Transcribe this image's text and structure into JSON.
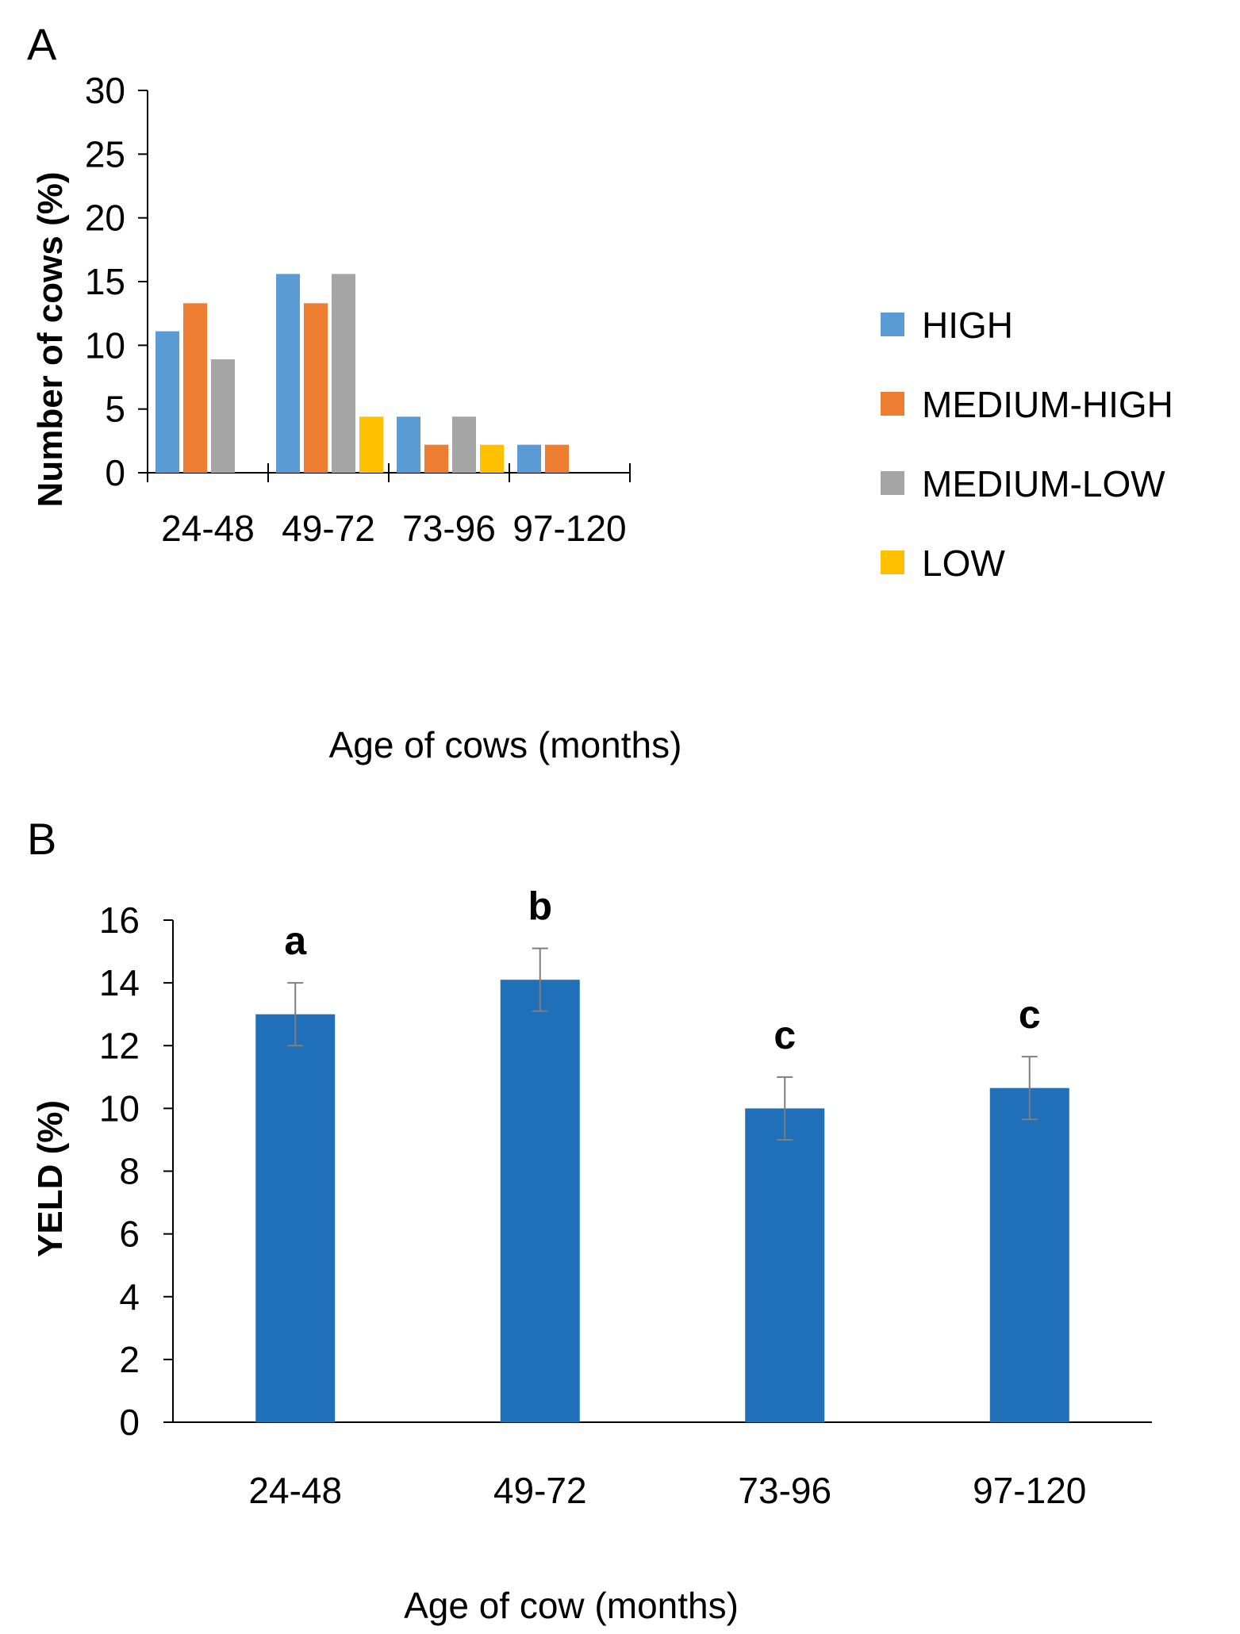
{
  "chart_data": [
    {
      "panel": "A",
      "type": "bar",
      "categories": [
        "24-48",
        "49-72",
        "73-96",
        "97-120"
      ],
      "series": [
        {
          "name": "HIGH",
          "color": "#5b9bd5",
          "values": [
            11.1,
            15.6,
            4.4,
            2.2
          ]
        },
        {
          "name": "MEDIUM-HIGH",
          "color": "#ed7d31",
          "values": [
            13.3,
            13.3,
            2.2,
            2.2
          ]
        },
        {
          "name": "MEDIUM-LOW",
          "color": "#a5a5a5",
          "values": [
            8.9,
            15.6,
            4.4,
            0
          ]
        },
        {
          "name": "LOW",
          "color": "#ffc000",
          "values": [
            0,
            4.4,
            2.2,
            0
          ]
        }
      ],
      "xlabel": "Age of cows (months)",
      "ylabel": "Number of cows (%)",
      "ylim": [
        0,
        30
      ],
      "yticks": [
        "0",
        "5",
        "10",
        "15",
        "20",
        "25",
        "30"
      ],
      "legend_position": "right",
      "grid": false
    },
    {
      "panel": "B",
      "type": "bar",
      "categories": [
        "24-48",
        "49-72",
        "73-96",
        "97-120"
      ],
      "values": [
        13.0,
        14.1,
        10.0,
        10.65
      ],
      "errors": [
        1.0,
        1.0,
        1.0,
        1.0
      ],
      "significance_letters": [
        "a",
        "b",
        "c",
        "c"
      ],
      "color": "#1f6fb9",
      "error_bar_color": "#7f7f7f",
      "xlabel": "Age of cow (months)",
      "ylabel": "YELD (%)",
      "ylim": [
        0,
        16
      ],
      "yticks": [
        "0",
        "2",
        "4",
        "6",
        "8",
        "10",
        "12",
        "14",
        "16"
      ],
      "grid": false
    }
  ]
}
